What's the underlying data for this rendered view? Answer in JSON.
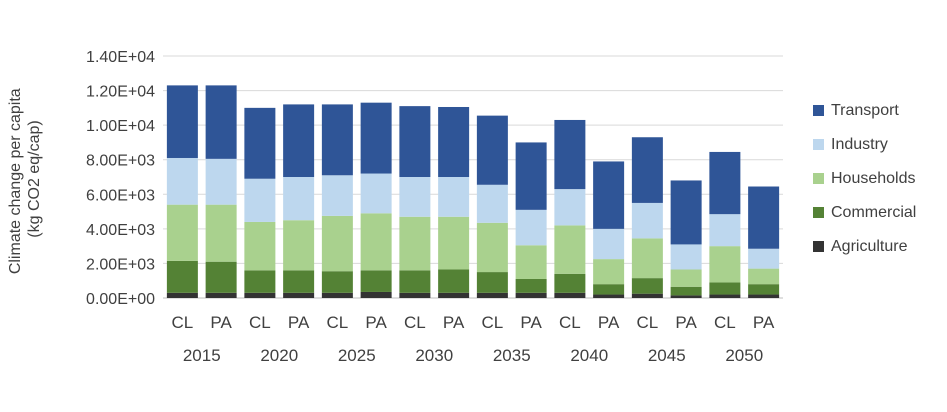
{
  "chart_data": {
    "type": "bar",
    "stacked": true,
    "ylabel_lines": [
      "Climate change per capita",
      "(kg CO2 eq/cap)"
    ],
    "ylim": [
      0,
      14000
    ],
    "yticks": [
      {
        "value": 0,
        "label": "0.00E+00"
      },
      {
        "value": 2000,
        "label": "2.00E+03"
      },
      {
        "value": 4000,
        "label": "4.00E+03"
      },
      {
        "value": 6000,
        "label": "6.00E+03"
      },
      {
        "value": 8000,
        "label": "8.00E+03"
      },
      {
        "value": 10000,
        "label": "1.00E+04"
      },
      {
        "value": 12000,
        "label": "1.20E+04"
      },
      {
        "value": 14000,
        "label": "1.40E+04"
      }
    ],
    "grid": true,
    "legend_position": "right",
    "groups": [
      "2015",
      "2020",
      "2025",
      "2030",
      "2035",
      "2040",
      "2045",
      "2050"
    ],
    "categories": [
      "CL",
      "PA",
      "CL",
      "PA",
      "CL",
      "PA",
      "CL",
      "PA",
      "CL",
      "PA",
      "CL",
      "PA",
      "CL",
      "PA",
      "CL",
      "PA"
    ],
    "series": [
      {
        "name": "Agriculture",
        "color": "#333333",
        "values": [
          300,
          300,
          300,
          300,
          300,
          350,
          300,
          300,
          300,
          300,
          300,
          200,
          250,
          150,
          200,
          200
        ]
      },
      {
        "name": "Commercial",
        "color": "#548235",
        "values": [
          1850,
          1800,
          1300,
          1300,
          1250,
          1250,
          1300,
          1350,
          1200,
          800,
          1100,
          600,
          900,
          500,
          700,
          600
        ]
      },
      {
        "name": "Households",
        "color": "#A9D18E",
        "values": [
          3250,
          3300,
          2800,
          2900,
          3200,
          3300,
          3100,
          3050,
          2850,
          1950,
          2800,
          1450,
          2300,
          1000,
          2100,
          900
        ]
      },
      {
        "name": "Industry",
        "color": "#BDD7EE",
        "values": [
          2700,
          2650,
          2500,
          2500,
          2350,
          2300,
          2300,
          2300,
          2200,
          2050,
          2100,
          1750,
          2050,
          1450,
          1850,
          1150
        ]
      },
      {
        "name": "Transport",
        "color": "#2F5597",
        "values": [
          4200,
          4250,
          4100,
          4200,
          4100,
          4100,
          4100,
          4050,
          4000,
          3900,
          4000,
          3900,
          3800,
          3700,
          3600,
          3600
        ]
      }
    ]
  }
}
